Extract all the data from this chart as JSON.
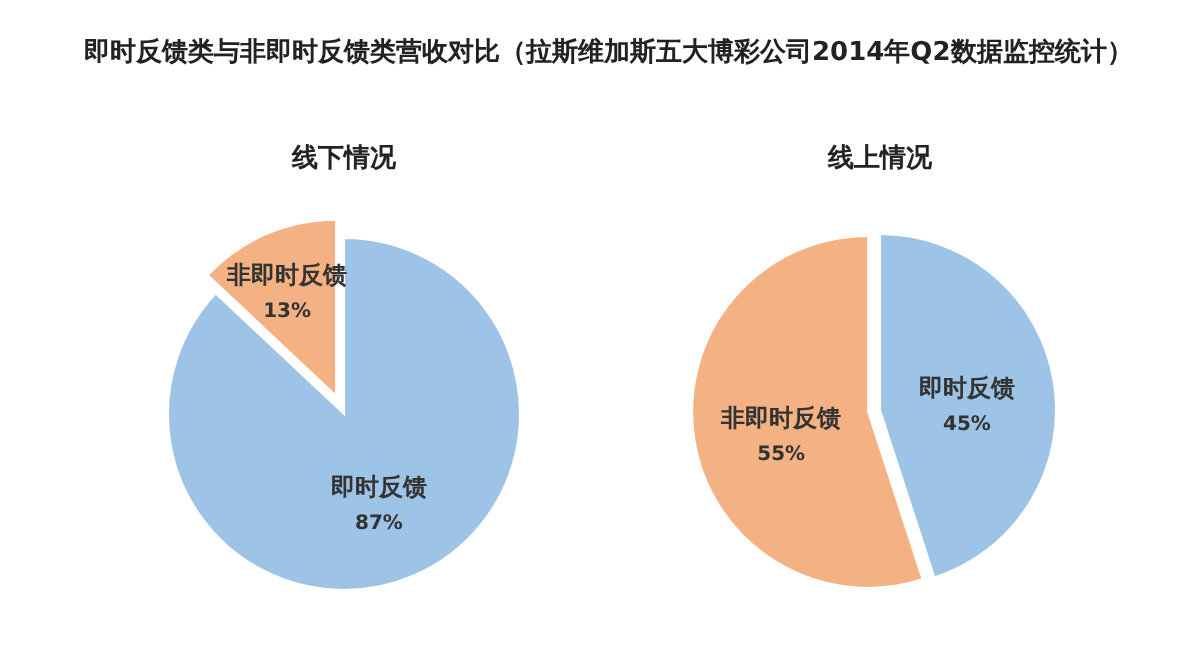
{
  "chart_data": [
    {
      "type": "other",
      "title": "即时反馈类与非即时反馈类营收对比（拉斯维加斯五大博彩公司2014年Q2数据监控统计）"
    },
    {
      "type": "pie",
      "title": "线下情况",
      "categories": [
        "即时反馈",
        "非即时反馈"
      ],
      "values": [
        87,
        13
      ],
      "value_labels": [
        "87%",
        "13%"
      ],
      "colors": [
        "#9dc3e6",
        "#f4b183"
      ]
    },
    {
      "type": "pie",
      "title": "线上情况",
      "categories": [
        "即时反馈",
        "非即时反馈"
      ],
      "values": [
        45,
        55
      ],
      "value_labels": [
        "45%",
        "55%"
      ],
      "colors": [
        "#9dc3e6",
        "#f4b183"
      ]
    }
  ]
}
